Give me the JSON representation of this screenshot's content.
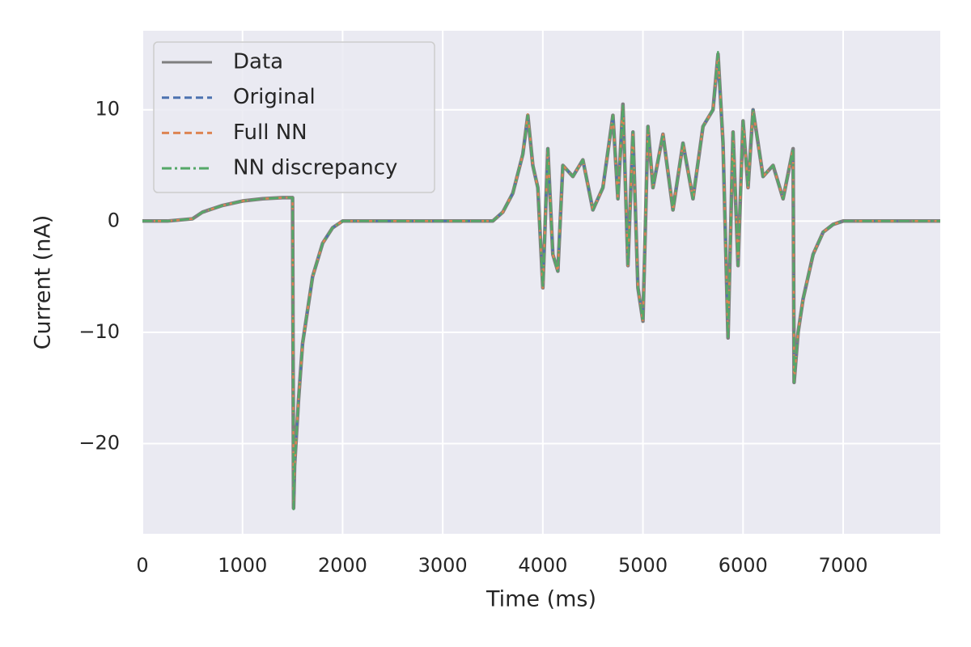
{
  "chart_data": {
    "type": "line",
    "xlabel": "Time (ms)",
    "ylabel": "Current (nA)",
    "x": [
      0,
      250,
      500,
      600,
      800,
      1000,
      1200,
      1400,
      1500,
      1510,
      1520,
      1560,
      1600,
      1700,
      1800,
      1900,
      2000,
      2500,
      3000,
      3500,
      3600,
      3700,
      3800,
      3850,
      3900,
      3950,
      4000,
      4050,
      4100,
      4150,
      4200,
      4300,
      4400,
      4500,
      4600,
      4700,
      4750,
      4800,
      4850,
      4900,
      4950,
      5000,
      5050,
      5100,
      5200,
      5300,
      5400,
      5500,
      5600,
      5700,
      5750,
      5800,
      5850,
      5900,
      5950,
      6000,
      6050,
      6100,
      6200,
      6300,
      6400,
      6500,
      6510,
      6550,
      6600,
      6700,
      6800,
      6900,
      7000,
      7500,
      7970
    ],
    "series": [
      {
        "name": "Data",
        "color": "#7f7f7f",
        "dash": "solid",
        "values": [
          0,
          0,
          0.2,
          0.8,
          1.4,
          1.8,
          2.0,
          2.1,
          2.1,
          -25.8,
          -22,
          -16,
          -11,
          -5,
          -2,
          -0.6,
          0,
          0,
          0,
          0,
          0.8,
          2.5,
          6,
          9.5,
          5,
          3,
          -6,
          6.5,
          -3,
          -4.5,
          5,
          4,
          5.5,
          1,
          3,
          9.5,
          2,
          10.5,
          -4,
          8,
          -6,
          -9,
          8.5,
          3,
          7.8,
          1,
          7,
          2,
          8.5,
          10,
          15,
          7,
          -10.5,
          8,
          -4,
          9,
          3,
          10,
          4,
          5,
          2,
          6.5,
          -14.5,
          -10,
          -7,
          -3,
          -1,
          -0.3,
          0,
          0,
          0
        ]
      },
      {
        "name": "Original",
        "color": "#4c72b0",
        "dash": "dashed",
        "values": [
          0,
          0,
          0.2,
          0.8,
          1.4,
          1.8,
          2.0,
          2.1,
          2.1,
          -25.2,
          -22,
          -16,
          -11,
          -5,
          -2,
          -0.6,
          0,
          0,
          0,
          0,
          0.8,
          2.5,
          6,
          9.3,
          5,
          3,
          -5.8,
          6.5,
          -3,
          -4.5,
          5,
          4,
          5.5,
          1,
          3,
          9.5,
          2,
          10.3,
          -4,
          8,
          -6,
          -8.8,
          8.5,
          3,
          7.8,
          1,
          7,
          2,
          8.5,
          10,
          14,
          7,
          -10.3,
          8,
          -4,
          9,
          3,
          10,
          4,
          5,
          2,
          6.5,
          -14.3,
          -10,
          -7,
          -3,
          -1,
          -0.3,
          0,
          0,
          0
        ]
      },
      {
        "name": "Full NN",
        "color": "#dd8452",
        "dash": "dashed",
        "values": [
          0,
          0,
          0.2,
          0.8,
          1.4,
          1.8,
          2.0,
          2.1,
          2.1,
          -25.5,
          -22,
          -16,
          -11,
          -5,
          -2,
          -0.6,
          0,
          0,
          0,
          0,
          0.8,
          2.5,
          6,
          9.6,
          5,
          3,
          -6,
          6.5,
          -3,
          -4.5,
          5,
          4,
          5.5,
          1,
          3,
          9.5,
          2,
          10.4,
          -4,
          8,
          -6,
          -9,
          8.5,
          3,
          7.8,
          1,
          7,
          2,
          8.5,
          10,
          14.8,
          7,
          -10.4,
          8,
          -4,
          9,
          3,
          10,
          4,
          5,
          2,
          6.5,
          -14.4,
          -10,
          -7,
          -3,
          -1,
          -0.3,
          0,
          0,
          0
        ]
      },
      {
        "name": "NN discrepancy",
        "color": "#55a868",
        "dash": "dashdot",
        "values": [
          0,
          0,
          0.2,
          0.8,
          1.4,
          1.8,
          2.0,
          2.1,
          2.1,
          -25.9,
          -22,
          -16,
          -11,
          -5,
          -2,
          -0.6,
          0,
          0,
          0,
          0,
          0.8,
          2.5,
          6,
          9.5,
          5,
          3,
          -6,
          6.5,
          -3,
          -4.5,
          5,
          4,
          5.5,
          1,
          3,
          9.5,
          2,
          10.5,
          -4,
          8,
          -6,
          -9,
          8.5,
          3,
          7.8,
          1,
          7,
          2,
          8.5,
          10,
          15.2,
          7,
          -10.6,
          8,
          -4,
          9,
          3,
          10,
          4,
          5,
          2,
          6.5,
          -14.5,
          -10,
          -7,
          -3,
          -1,
          -0.3,
          0,
          0,
          0
        ]
      }
    ],
    "xlim": [
      0,
      7970
    ],
    "ylim": [
      -28.1,
      17.1
    ],
    "xticks": [
      0,
      1000,
      2000,
      3000,
      4000,
      5000,
      6000,
      7000
    ],
    "yticks": [
      {
        "value": -20,
        "label": "−20"
      },
      {
        "value": -10,
        "label": "−10"
      },
      0,
      10
    ],
    "grid": true,
    "legend": "upper left"
  }
}
